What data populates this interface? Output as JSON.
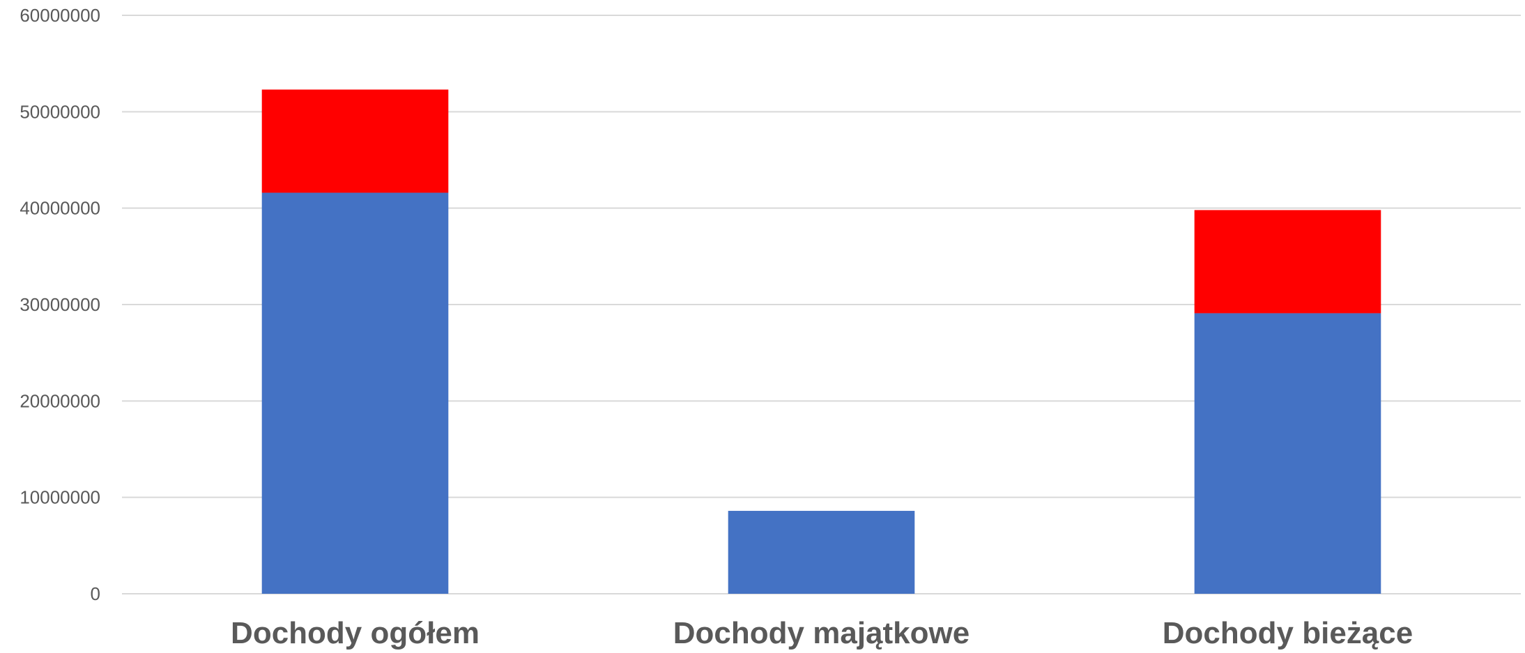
{
  "chart_data": {
    "type": "bar",
    "stacked": true,
    "categories": [
      "Dochody ogółem",
      "Dochody majątkowe",
      "Dochody bieżące"
    ],
    "series": [
      {
        "values": [
          41600000,
          8600000,
          29100000
        ],
        "color": "#4472C4"
      },
      {
        "values": [
          10700000,
          0,
          10700000
        ],
        "color": "#FF0000"
      }
    ],
    "ylim": [
      0,
      60000000
    ],
    "yticks": [
      0,
      10000000,
      20000000,
      30000000,
      40000000,
      50000000,
      60000000
    ],
    "ytick_labels": [
      "0",
      "10000000",
      "20000000",
      "30000000",
      "40000000",
      "50000000",
      "60000000"
    ],
    "grid": true,
    "legend": "none"
  }
}
